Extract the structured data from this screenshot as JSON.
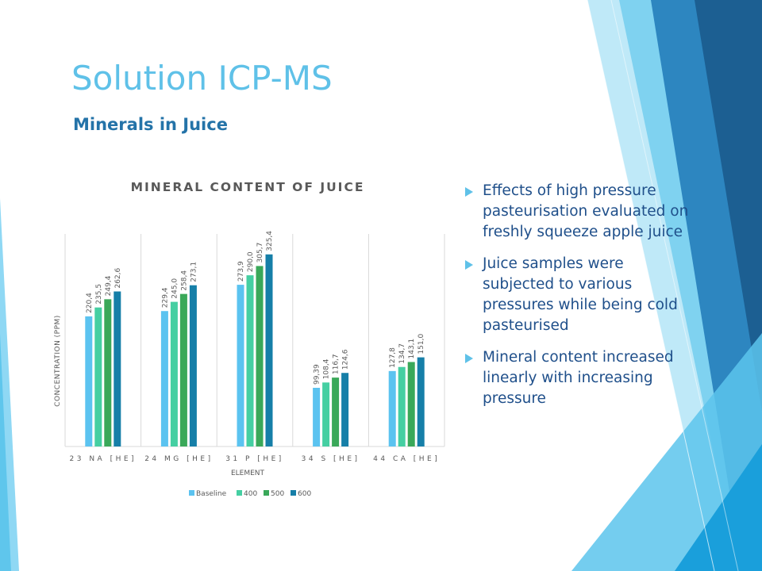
{
  "slide": {
    "title": "Solution ICP-MS",
    "subtitle": "Minerals in Juice",
    "bullets": [
      "Effects of high pressure pasteurisation evaluated on freshly squeeze apple juice",
      "Juice samples were subjected to various pressures while being cold pasteurised",
      "Mineral content increased linearly with increasing pressure"
    ]
  },
  "colors": {
    "title": "#5fc1e8",
    "subtitle": "#2473a8",
    "bullet_text": "#1f4f8a",
    "series": [
      "#5bc3f0",
      "#45cfa2",
      "#3aa859",
      "#167fa8"
    ]
  },
  "chart_data": {
    "type": "bar",
    "title": "MINERAL CONTENT OF JUICE",
    "xlabel": "ELEMENT",
    "ylabel": "CONCENTRATION (PPM)",
    "categories": [
      "23 NA [HE]",
      "24 MG [HE]",
      "31 P [HE]",
      "34 S [HE]",
      "44 CA [HE]"
    ],
    "series": [
      {
        "name": "Baseline",
        "values": [
          220.4,
          229.4,
          273.9,
          99.39,
          127.8
        ],
        "labels": [
          "220,4",
          "229,4",
          "273,9",
          "99,39",
          "127,8"
        ]
      },
      {
        "name": "400",
        "values": [
          235.5,
          245.0,
          290.0,
          108.4,
          134.7
        ],
        "labels": [
          "235,5",
          "245,0",
          "290,0",
          "108,4",
          "134,7"
        ]
      },
      {
        "name": "500",
        "values": [
          249.4,
          258.4,
          305.7,
          116.7,
          143.1
        ],
        "labels": [
          "249,4",
          "258,4",
          "305,7",
          "116,7",
          "143,1"
        ]
      },
      {
        "name": "600",
        "values": [
          262.6,
          273.1,
          325.4,
          124.6,
          151.0
        ],
        "labels": [
          "262,6",
          "273,1",
          "325,4",
          "124,6",
          "151,0"
        ]
      }
    ],
    "ylim": [
      0,
      360
    ],
    "grid": false,
    "legend_position": "bottom"
  }
}
